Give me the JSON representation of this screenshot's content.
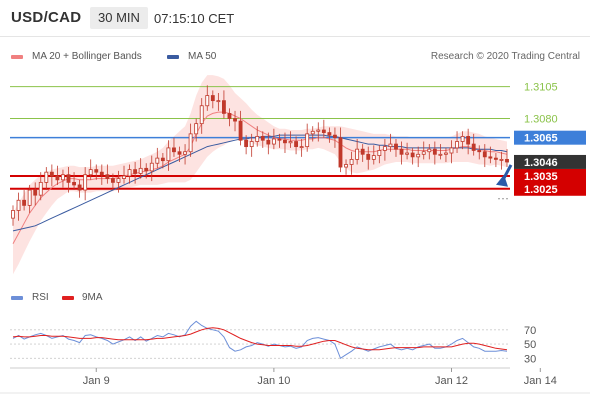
{
  "header": {
    "pair": "USD/CAD",
    "timeframe": "30 MIN",
    "time": "07:15:10 CET"
  },
  "legend": {
    "ma20_label": "MA 20 + Bollinger Bands",
    "ma50_label": "MA 50",
    "credit": "Research © 2020 Trading Central"
  },
  "rsi_legend": {
    "rsi_label": "RSI",
    "ma_label": "9MA"
  },
  "colors": {
    "ma20": "#f08080",
    "band_fill": "#fde0de",
    "ma50": "#3a5ba0",
    "candle": "#c0392b",
    "resistance": "#8bc34a",
    "pivot": "#3d7fd9",
    "support": "#d40000",
    "last_price": "#333333",
    "arrow": "#2a5aa8",
    "rsi": "#6d8fd8",
    "rsi_ma": "#e02020"
  },
  "chart_data": [
    {
      "type": "candlestick",
      "x_labels": [
        "Jan 9",
        "Jan 10",
        "Jan 12",
        "Jan 14"
      ],
      "x_label_index": [
        15,
        47,
        79,
        95
      ],
      "ylim": [
        1.2952,
        1.3118
      ],
      "levels": [
        {
          "price": "1.3105",
          "kind": "resistance"
        },
        {
          "price": "1.3080",
          "kind": "resistance"
        },
        {
          "price": "1.3065",
          "kind": "pivot"
        },
        {
          "price": "1.3046",
          "kind": "last"
        },
        {
          "price": "1.3035",
          "kind": "support"
        },
        {
          "price": "1.3025",
          "kind": "support"
        }
      ],
      "close": [
        1.3008,
        1.3016,
        1.3012,
        1.3024,
        1.302,
        1.303,
        1.3038,
        1.3035,
        1.3032,
        1.3036,
        1.303,
        1.3028,
        1.3024,
        1.3036,
        1.304,
        1.3038,
        1.3036,
        1.3033,
        1.303,
        1.3033,
        1.3035,
        1.304,
        1.3037,
        1.3041,
        1.3039,
        1.3045,
        1.3049,
        1.3047,
        1.3057,
        1.3054,
        1.3052,
        1.3054,
        1.3068,
        1.3076,
        1.309,
        1.3098,
        1.3094,
        1.3094,
        1.3084,
        1.308,
        1.3078,
        1.3063,
        1.3058,
        1.3062,
        1.3066,
        1.3063,
        1.306,
        1.3064,
        1.3063,
        1.3061,
        1.3062,
        1.3058,
        1.3058,
        1.3068,
        1.307,
        1.3071,
        1.3069,
        1.3067,
        1.3065,
        1.3042,
        1.3044,
        1.3048,
        1.3056,
        1.3052,
        1.3048,
        1.3051,
        1.3055,
        1.3058,
        1.306,
        1.3056,
        1.3052,
        1.3053,
        1.305,
        1.3052,
        1.3054,
        1.3056,
        1.3052,
        1.3052,
        1.3053,
        1.3057,
        1.3062,
        1.3066,
        1.306,
        1.3055,
        1.3054,
        1.305,
        1.3049,
        1.3048,
        1.3048,
        1.3046
      ],
      "ma20": [
        1.2982,
        1.299,
        1.2998,
        1.3006,
        1.3012,
        1.3018,
        1.3022,
        1.3026,
        1.3029,
        1.3031,
        1.3033,
        1.3033,
        1.3032,
        1.3032,
        1.3032,
        1.3033,
        1.3033,
        1.3033,
        1.3033,
        1.3034,
        1.3035,
        1.3036,
        1.3037,
        1.3038,
        1.3039,
        1.304,
        1.3041,
        1.3043,
        1.3046,
        1.3048,
        1.305,
        1.3052,
        1.3058,
        1.3068,
        1.3076,
        1.3082,
        1.3084,
        1.3085,
        1.3085,
        1.3084,
        1.3082,
        1.308,
        1.3077,
        1.3074,
        1.3071,
        1.3069,
        1.3067,
        1.3065,
        1.3064,
        1.3064,
        1.3063,
        1.3063,
        1.3063,
        1.3064,
        1.3064,
        1.3065,
        1.3065,
        1.3064,
        1.3063,
        1.306,
        1.3057,
        1.3055,
        1.3054,
        1.3054,
        1.3054,
        1.3054,
        1.3055,
        1.3056,
        1.3056,
        1.3056,
        1.3056,
        1.3056,
        1.3055,
        1.3055,
        1.3055,
        1.3055,
        1.3055,
        1.3055,
        1.3055,
        1.3056,
        1.3057,
        1.3058,
        1.3058,
        1.3057,
        1.3056,
        1.3055,
        1.3054,
        1.3054,
        1.3053,
        1.3052
      ],
      "band_width": [
        0.0024,
        0.0024,
        0.0023,
        0.0022,
        0.002,
        0.0018,
        0.0016,
        0.0014,
        0.0012,
        0.0011,
        0.001,
        0.001,
        0.001,
        0.001,
        0.001,
        0.001,
        0.001,
        0.001,
        0.001,
        0.001,
        0.001,
        0.001,
        0.001,
        0.001,
        0.0011,
        0.0012,
        0.0013,
        0.0014,
        0.0016,
        0.0018,
        0.002,
        0.0022,
        0.0026,
        0.003,
        0.0032,
        0.0032,
        0.003,
        0.0028,
        0.0026,
        0.0022,
        0.0018,
        0.0016,
        0.0015,
        0.0013,
        0.0012,
        0.0011,
        0.001,
        0.0009,
        0.0008,
        0.0008,
        0.0008,
        0.0008,
        0.0008,
        0.0008,
        0.0008,
        0.0008,
        0.0009,
        0.001,
        0.0011,
        0.0014,
        0.0016,
        0.0017,
        0.0017,
        0.0016,
        0.0015,
        0.0014,
        0.0013,
        0.0012,
        0.0011,
        0.001,
        0.001,
        0.001,
        0.001,
        0.001,
        0.001,
        0.001,
        0.001,
        0.001,
        0.001,
        0.001,
        0.0011,
        0.0012,
        0.0012,
        0.0012,
        0.0012,
        0.0011,
        0.0011,
        0.001,
        0.001,
        0.001
      ],
      "ma50": [
        1.2992,
        1.2993,
        1.2994,
        1.2995,
        1.2996,
        1.2998,
        1.3,
        1.3002,
        1.3004,
        1.3006,
        1.3008,
        1.301,
        1.3012,
        1.3014,
        1.3016,
        1.3018,
        1.302,
        1.3022,
        1.3024,
        1.3026,
        1.3028,
        1.303,
        1.3032,
        1.3034,
        1.3036,
        1.3038,
        1.304,
        1.3042,
        1.3044,
        1.3046,
        1.3048,
        1.305,
        1.3052,
        1.3054,
        1.3056,
        1.3058,
        1.3059,
        1.306,
        1.3061,
        1.3062,
        1.3063,
        1.3064,
        1.3064,
        1.3065,
        1.3065,
        1.3066,
        1.3066,
        1.3066,
        1.3067,
        1.3067,
        1.3067,
        1.3067,
        1.3067,
        1.3067,
        1.3067,
        1.3067,
        1.3067,
        1.3066,
        1.3066,
        1.3065,
        1.3064,
        1.3063,
        1.3062,
        1.3061,
        1.306,
        1.306,
        1.3059,
        1.3059,
        1.3058,
        1.3058,
        1.3058,
        1.3057,
        1.3057,
        1.3057,
        1.3057,
        1.3057,
        1.3057,
        1.3057,
        1.3057,
        1.3057,
        1.3057,
        1.3057,
        1.3057,
        1.3056,
        1.3056,
        1.3056,
        1.3056,
        1.3055,
        1.3055,
        1.3054
      ]
    },
    {
      "type": "line",
      "ylim": [
        22,
        95
      ],
      "y_ticks": [
        "70",
        "50",
        "30"
      ],
      "series": [
        {
          "name": "RSI",
          "values": [
            58,
            62,
            57,
            60,
            63,
            65,
            62,
            58,
            60,
            62,
            57,
            55,
            52,
            62,
            63,
            60,
            58,
            55,
            50,
            53,
            56,
            60,
            55,
            60,
            54,
            58,
            62,
            60,
            65,
            63,
            60,
            63,
            75,
            82,
            76,
            72,
            70,
            68,
            60,
            45,
            40,
            42,
            46,
            48,
            52,
            50,
            47,
            50,
            48,
            46,
            47,
            44,
            46,
            55,
            58,
            59,
            57,
            55,
            50,
            30,
            35,
            40,
            46,
            43,
            40,
            43,
            46,
            48,
            50,
            44,
            42,
            44,
            42,
            46,
            48,
            50,
            44,
            44,
            46,
            50,
            55,
            58,
            52,
            46,
            44,
            40,
            40,
            40,
            41,
            40
          ]
        },
        {
          "name": "9MA",
          "values": [
            60,
            61,
            60,
            60,
            61,
            62,
            62,
            61,
            61,
            61,
            60,
            59,
            58,
            58,
            58,
            59,
            59,
            58,
            57,
            56,
            56,
            56,
            56,
            56,
            56,
            57,
            58,
            58,
            59,
            60,
            61,
            62,
            64,
            67,
            70,
            72,
            73,
            72,
            70,
            66,
            62,
            58,
            55,
            52,
            50,
            49,
            48,
            48,
            48,
            48,
            48,
            47,
            47,
            48,
            50,
            52,
            54,
            55,
            55,
            52,
            49,
            46,
            44,
            43,
            42,
            42,
            42,
            43,
            44,
            45,
            45,
            45,
            45,
            45,
            46,
            46,
            46,
            46,
            46,
            46,
            48,
            50,
            51,
            51,
            50,
            48,
            46,
            44,
            43,
            42
          ]
        }
      ]
    }
  ]
}
